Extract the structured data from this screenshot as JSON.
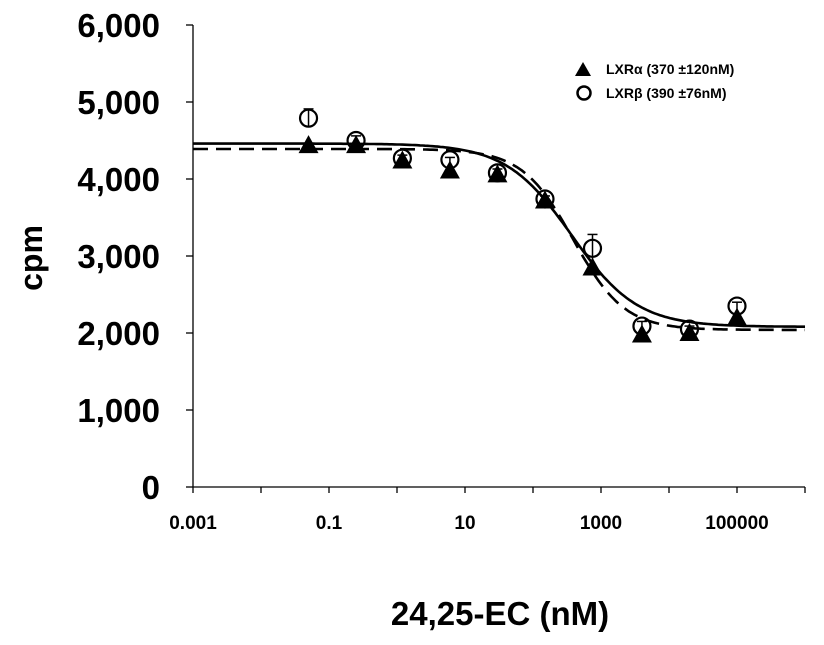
{
  "chart_data": {
    "type": "scatter",
    "title": "",
    "xlabel": "24,25-EC (nM)",
    "ylabel": "cpm",
    "x_scale": "log",
    "xlim": [
      0.001,
      1000000
    ],
    "ylim": [
      0,
      6000
    ],
    "x_ticks": [
      "0.001",
      "0.1",
      "10",
      "1000",
      "100000"
    ],
    "y_ticks": [
      "0",
      "1,000",
      "2,000",
      "3,000",
      "4,000",
      "5,000",
      "6,000"
    ],
    "grid": false,
    "legend_position": "top-right",
    "series": [
      {
        "name": "LXRα (370 ±120nM)",
        "marker": "filled-triangle",
        "fit_line": "solid",
        "x": [
          0.05,
          0.25,
          1.2,
          6,
          30,
          150,
          750,
          4000,
          20000,
          100000
        ],
        "y": [
          4440,
          4440,
          4240,
          4110,
          4060,
          3720,
          2850,
          1980,
          2000,
          2200
        ],
        "error": [
          0,
          0,
          0,
          0,
          0,
          0,
          0,
          0,
          0,
          0
        ]
      },
      {
        "name": "LXRβ (390 ±76nM)",
        "marker": "open-circle",
        "fit_line": "dashed",
        "x": [
          0.05,
          0.25,
          1.2,
          6,
          30,
          150,
          750,
          4000,
          20000,
          100000
        ],
        "y": [
          4790,
          4500,
          4270,
          4250,
          4080,
          3740,
          3100,
          2090,
          2050,
          2350
        ],
        "error": [
          120,
          60,
          40,
          30,
          50,
          40,
          180,
          60,
          40,
          50
        ]
      }
    ]
  }
}
